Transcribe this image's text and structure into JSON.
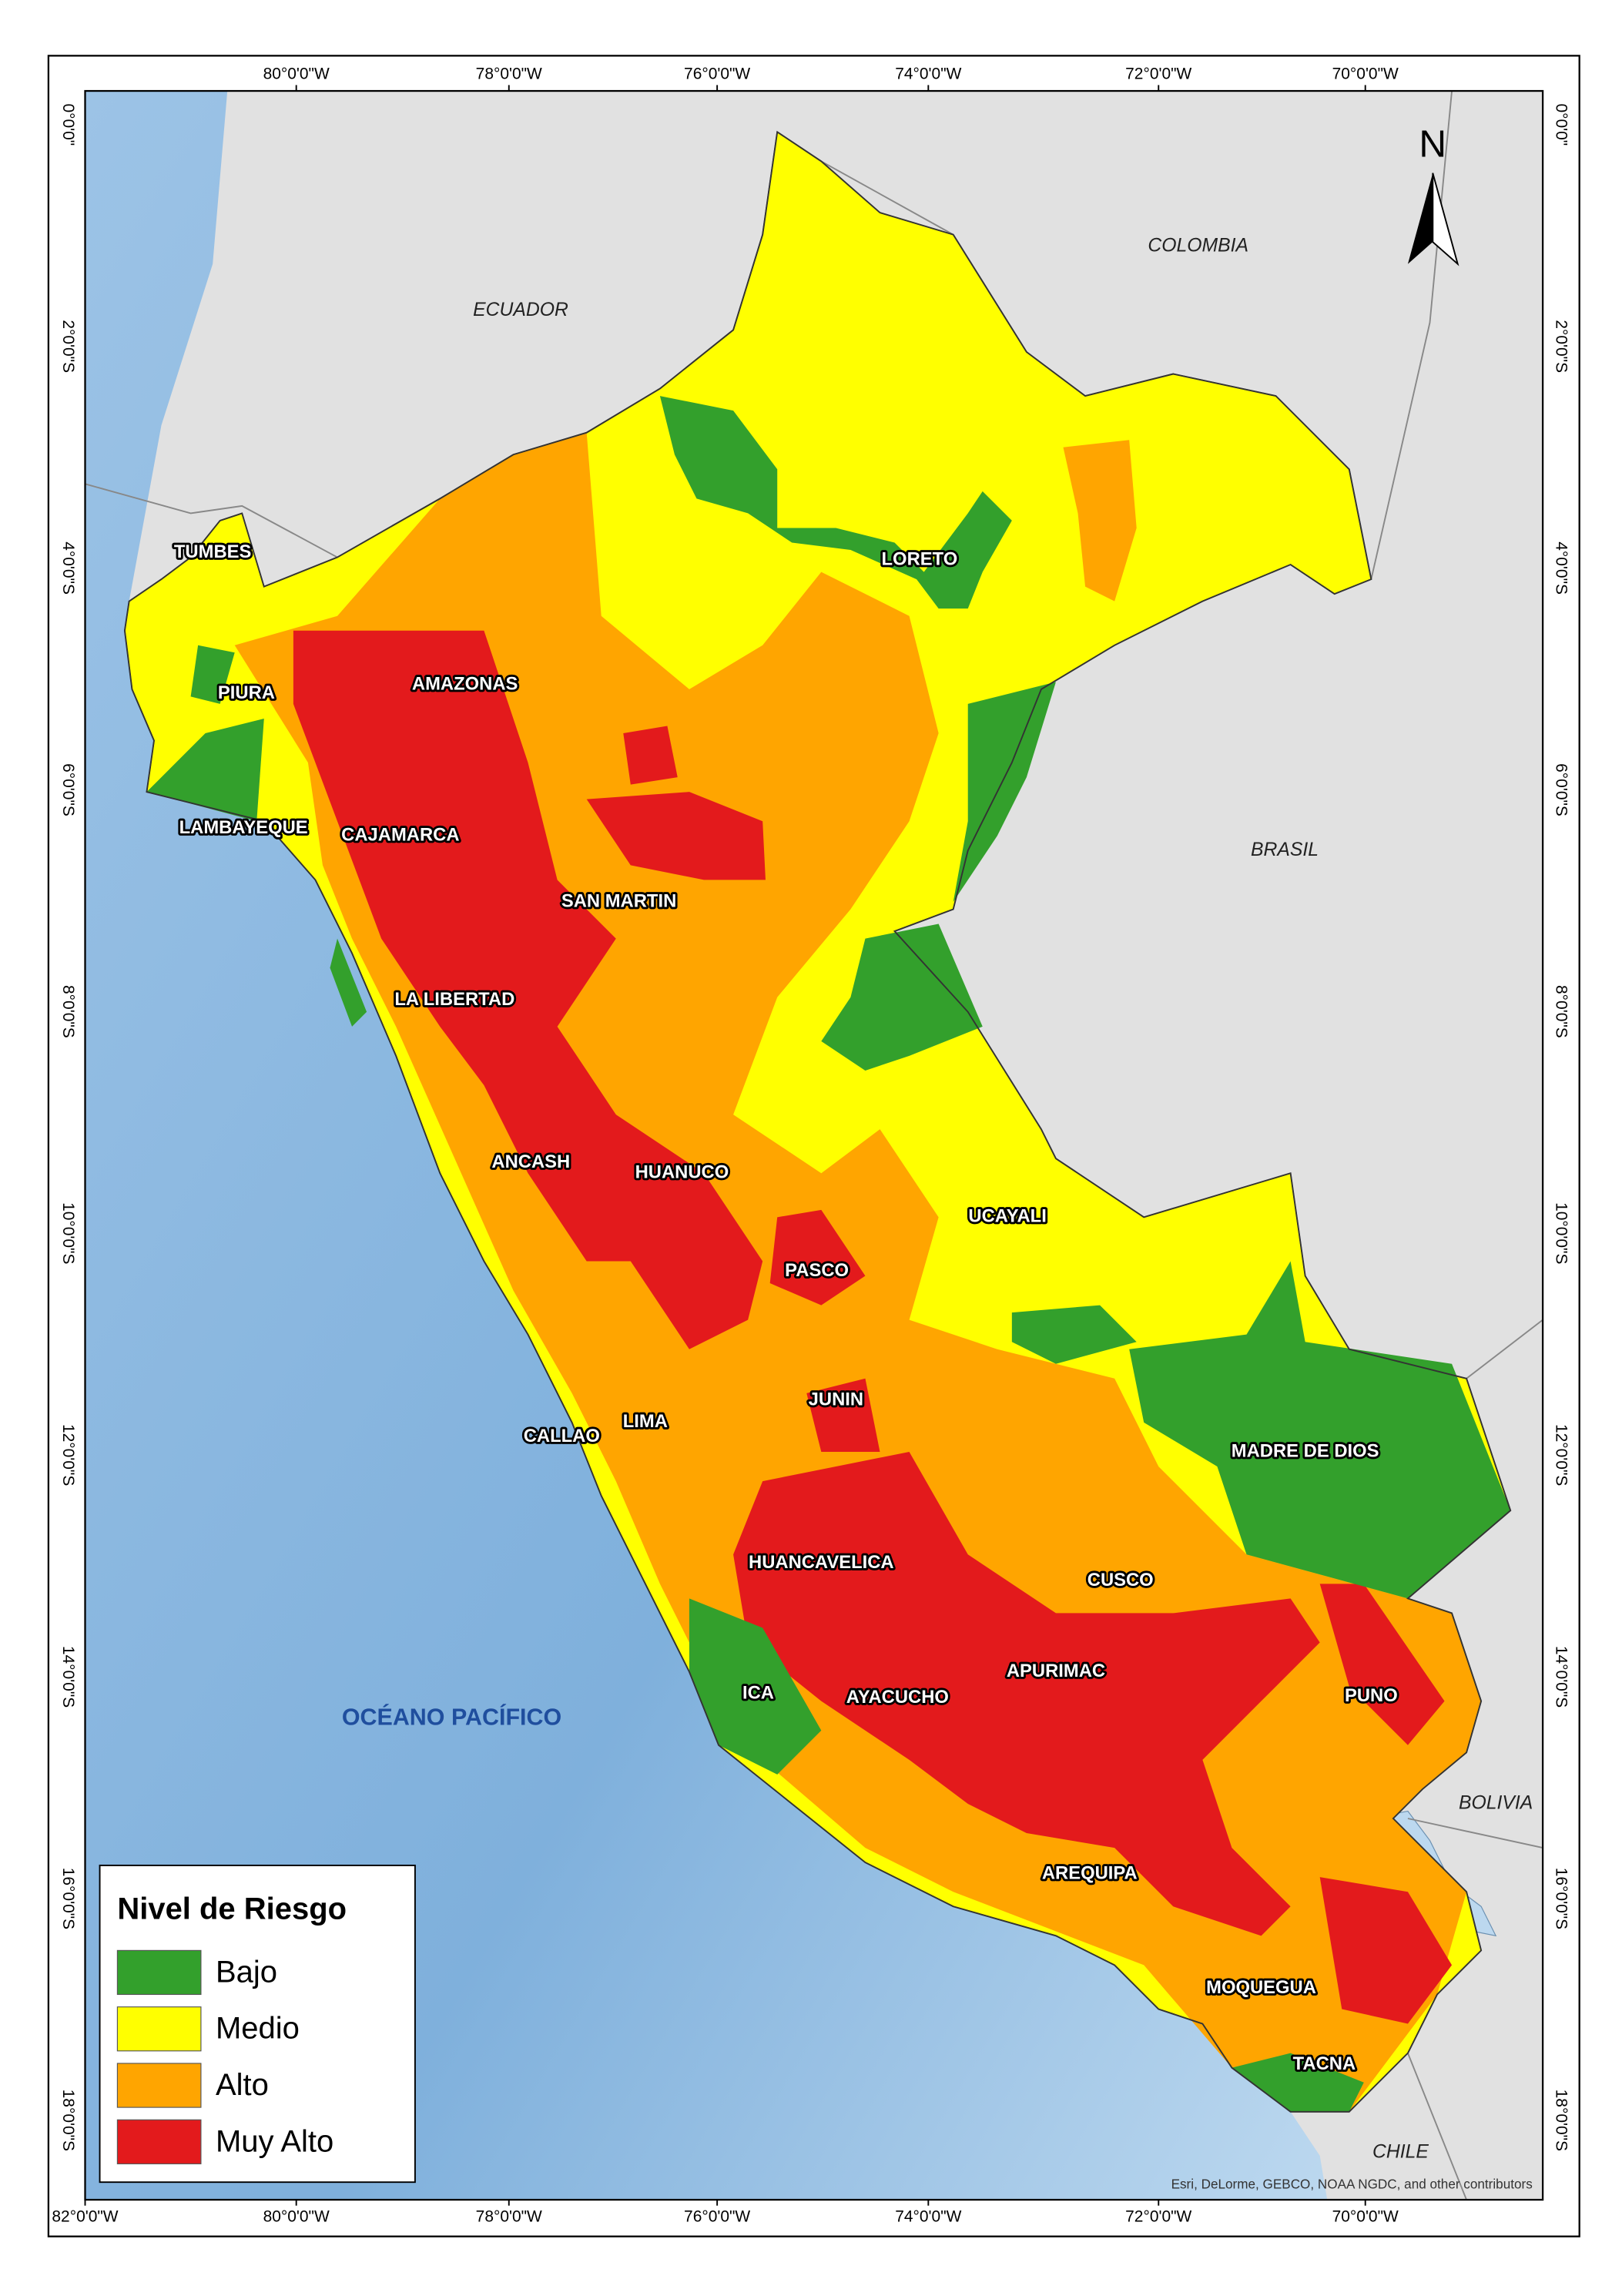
{
  "graticule": {
    "top": [
      "80°0'0\"W",
      "78°0'0\"W",
      "76°0'0\"W",
      "74°0'0\"W",
      "72°0'0\"W",
      "70°0'0\"W"
    ],
    "bottom": [
      "82°0'0\"W",
      "80°0'0\"W",
      "78°0'0\"W",
      "76°0'0\"W",
      "74°0'0\"W",
      "72°0'0\"W",
      "70°0'0\"W"
    ],
    "left": [
      "0°0'0\"",
      "2°0'0\"S",
      "4°0'0\"S",
      "6°0'0\"S",
      "8°0'0\"S",
      "10°0'0\"S",
      "12°0'0\"S",
      "14°0'0\"S",
      "16°0'0\"S",
      "18°0'0\"S"
    ],
    "right": [
      "0°0'0\"",
      "2°0'0\"S",
      "4°0'0\"S",
      "6°0'0\"S",
      "8°0'0\"S",
      "10°0'0\"S",
      "12°0'0\"S",
      "14°0'0\"S",
      "16°0'0\"S",
      "18°0'0\"S"
    ]
  },
  "north_arrow": "N",
  "countries": [
    "ECUADOR",
    "COLOMBIA",
    "BRASIL",
    "BOLIVIA",
    "CHILE"
  ],
  "ocean": "OCÉANO PACÍFICO",
  "regions": [
    "TUMBES",
    "PIURA",
    "AMAZONAS",
    "LAMBAYEQUE",
    "CAJAMARCA",
    "SAN MARTIN",
    "LORETO",
    "LA LIBERTAD",
    "ANCASH",
    "HUANUCO",
    "UCAYALI",
    "PASCO",
    "CALLAO",
    "LIMA",
    "JUNIN",
    "MADRE DE DIOS",
    "HUANCAVELICA",
    "CUSCO",
    "APURIMAC",
    "ICA",
    "AYACUCHO",
    "PUNO",
    "AREQUIPA",
    "MOQUEGUA",
    "TACNA"
  ],
  "legend": {
    "title": "Nivel de Riesgo",
    "items": [
      {
        "label": "Bajo",
        "color": "#33a02c"
      },
      {
        "label": "Medio",
        "color": "#ffff00"
      },
      {
        "label": "Alto",
        "color": "#ffa500"
      },
      {
        "label": "Muy Alto",
        "color": "#e31a1c"
      }
    ]
  },
  "attribution": "Esri, DeLorme, GEBCO, NOAA NGDC, and other contributors"
}
